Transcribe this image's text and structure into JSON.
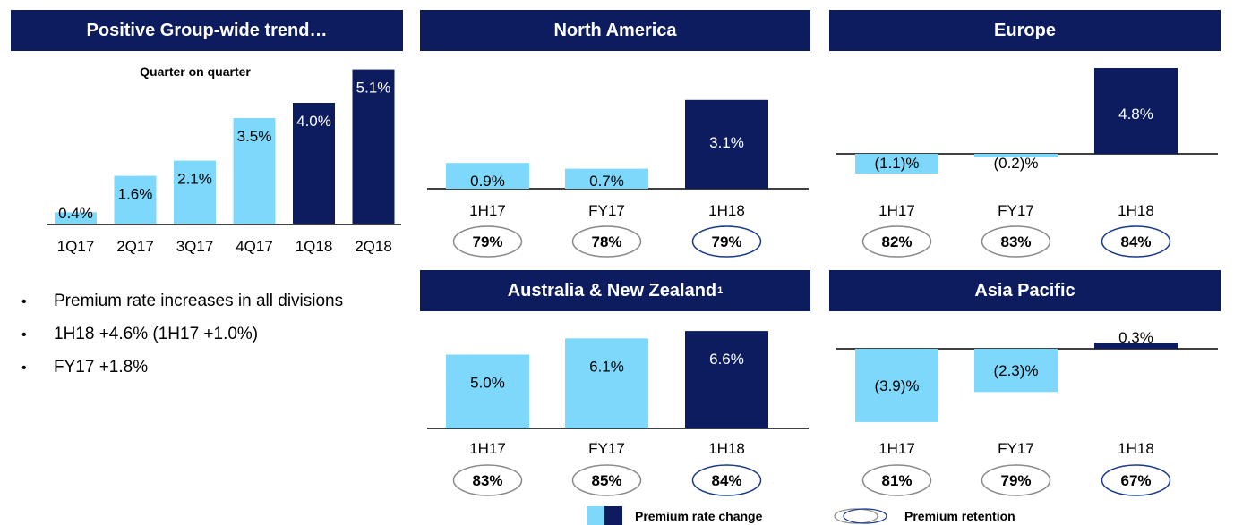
{
  "colors": {
    "header_bg": "#0d1c5e",
    "light_bar": "#7dd8fc",
    "dark_bar": "#0d1c5e",
    "ellipse_dark": "#1a3a8a",
    "ellipse_light": "#8a8a8a"
  },
  "panels": {
    "group": {
      "title": "Positive Group-wide trend…"
    },
    "north_america": {
      "title": "North America"
    },
    "europe": {
      "title": "Europe"
    },
    "anz": {
      "title": "Australia & New Zealand",
      "footnote": "1"
    },
    "asia_pacific": {
      "title": "Asia Pacific"
    }
  },
  "bullets": [
    "Premium rate increases in all divisions",
    "1H18 +4.6% (1H17 +1.0%)",
    "FY17 +1.8%"
  ],
  "legend": {
    "rate_change_label": "Premium rate change",
    "retention_label": "Premium retention"
  },
  "chart_data": [
    {
      "id": "group",
      "type": "bar",
      "subtitle": "Quarter on quarter",
      "categories": [
        "1Q17",
        "2Q17",
        "3Q17",
        "4Q17",
        "1Q18",
        "2Q18"
      ],
      "values": [
        0.4,
        1.6,
        2.1,
        3.5,
        4.0,
        5.1
      ],
      "value_labels": [
        "0.4%",
        "1.6%",
        "2.1%",
        "3.5%",
        "4.0%",
        "5.1%"
      ],
      "bar_colors": [
        "light",
        "light",
        "light",
        "light",
        "dark",
        "dark"
      ]
    },
    {
      "id": "north_america",
      "type": "bar",
      "categories": [
        "1H17",
        "FY17",
        "1H18"
      ],
      "values": [
        0.9,
        0.7,
        3.1
      ],
      "value_labels": [
        "0.9%",
        "0.7%",
        "3.1%"
      ],
      "bar_colors": [
        "light",
        "light",
        "dark"
      ],
      "retention": [
        "79%",
        "78%",
        "79%"
      ]
    },
    {
      "id": "europe",
      "type": "bar",
      "categories": [
        "1H17",
        "FY17",
        "1H18"
      ],
      "values": [
        -1.1,
        -0.2,
        4.8
      ],
      "value_labels": [
        "(1.1)%",
        "(0.2)%",
        "4.8%"
      ],
      "bar_colors": [
        "light",
        "light",
        "dark"
      ],
      "retention": [
        "82%",
        "83%",
        "84%"
      ]
    },
    {
      "id": "anz",
      "type": "bar",
      "categories": [
        "1H17",
        "FY17",
        "1H18"
      ],
      "values": [
        5.0,
        6.1,
        6.6
      ],
      "value_labels": [
        "5.0%",
        "6.1%",
        "6.6%"
      ],
      "bar_colors": [
        "light",
        "light",
        "dark"
      ],
      "retention": [
        "83%",
        "85%",
        "84%"
      ]
    },
    {
      "id": "asia_pacific",
      "type": "bar",
      "categories": [
        "1H17",
        "FY17",
        "1H18"
      ],
      "values": [
        -3.9,
        -2.3,
        0.3
      ],
      "value_labels": [
        "(3.9)%",
        "(2.3)%",
        "0.3%"
      ],
      "bar_colors": [
        "light",
        "light",
        "dark"
      ],
      "retention": [
        "81%",
        "79%",
        "67%"
      ]
    }
  ]
}
